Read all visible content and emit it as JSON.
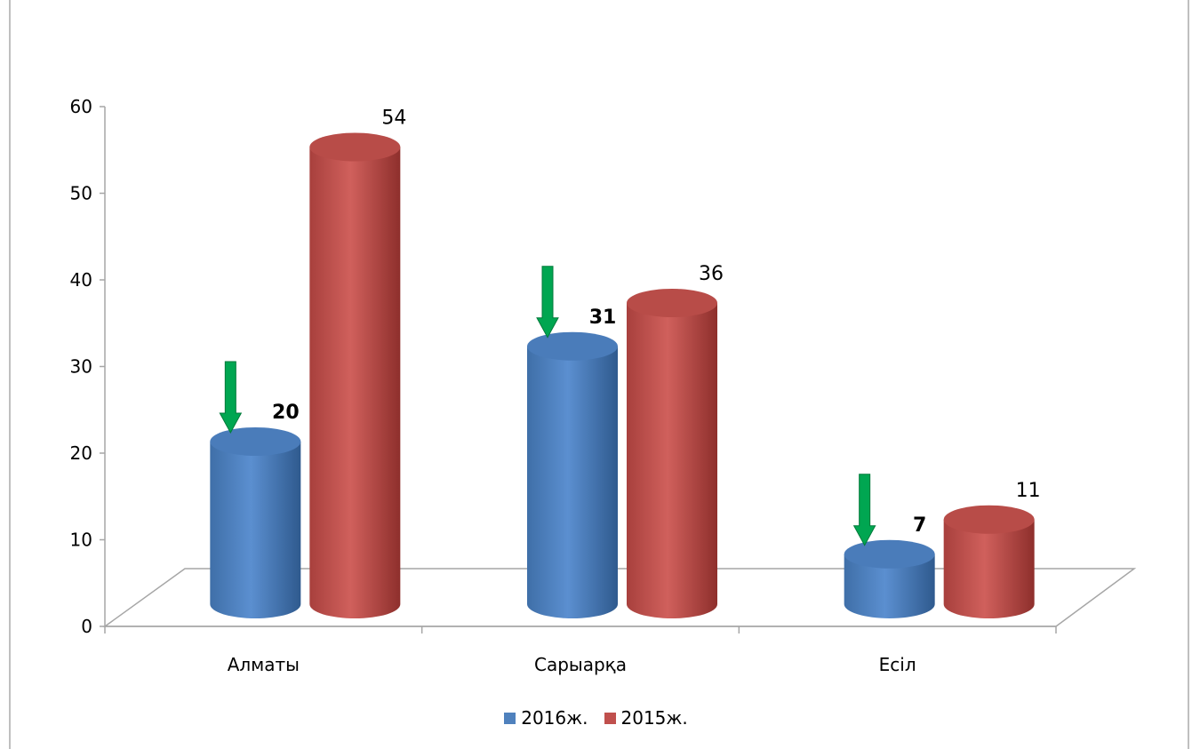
{
  "chart_data": {
    "type": "bar",
    "style": "3d-cylinder",
    "categories": [
      "Алматы",
      "Сарыарқа",
      "Есіл"
    ],
    "series": [
      {
        "name": "2016ж.",
        "values": [
          20,
          31,
          7
        ],
        "color": "#4f81bd",
        "label_bold": true
      },
      {
        "name": "2015ж.",
        "values": [
          54,
          36,
          11
        ],
        "color": "#c0504d",
        "label_bold": false
      }
    ],
    "ylim": [
      0,
      60
    ],
    "yticks": [
      0,
      10,
      20,
      30,
      40,
      50,
      60
    ],
    "grid": false,
    "legend": "bottom",
    "annotations": [
      {
        "type": "down-arrow",
        "series": "2016ж.",
        "category": "Алматы",
        "color": "#00a651"
      },
      {
        "type": "down-arrow",
        "series": "2016ж.",
        "category": "Сарыарқа",
        "color": "#00a651"
      },
      {
        "type": "down-arrow",
        "series": "2016ж.",
        "category": "Есіл",
        "color": "#00a651"
      }
    ]
  }
}
